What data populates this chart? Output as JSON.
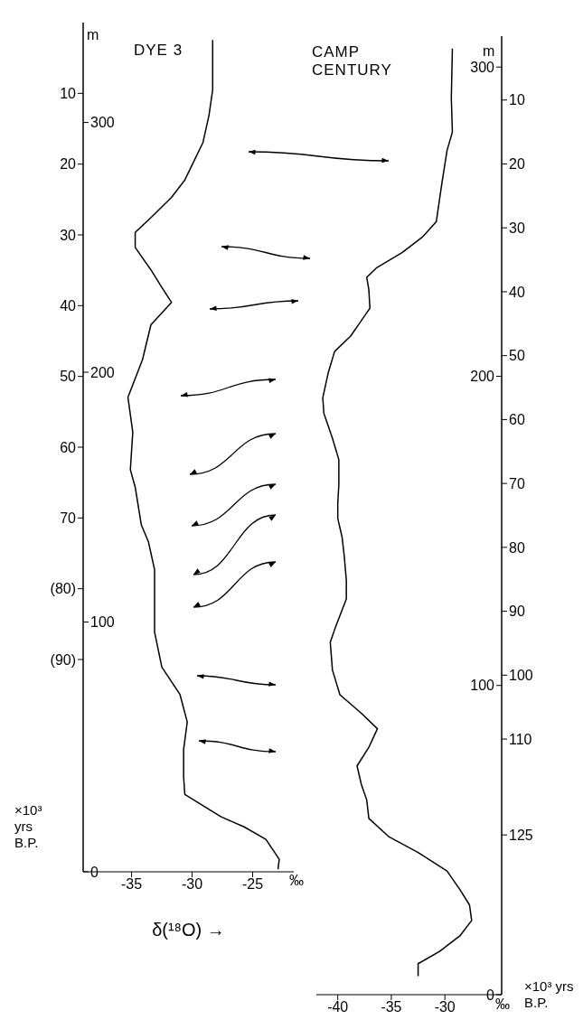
{
  "chart_data": [
    {
      "type": "line",
      "title": "DYE 3",
      "xlabel": "δ(¹⁸O) →",
      "ylabel": "m",
      "y2label": "×10³ yrs B.P.",
      "orientation": "horizontal",
      "color": "#000000",
      "marker": "none",
      "legend": false,
      "grid": false,
      "x": [
        333,
        313,
        303,
        292,
        284,
        277,
        270,
        261,
        256,
        250,
        241,
        234,
        228,
        219,
        205,
        190,
        176,
        161,
        154,
        139,
        132,
        121,
        111,
        96,
        82,
        71,
        60,
        49,
        38,
        31,
        22,
        18,
        13,
        5,
        1
      ],
      "values": [
        -28.3,
        -28.3,
        -28.6,
        -29.1,
        -29.9,
        -30.6,
        -31.7,
        -33.6,
        -34.7,
        -34.7,
        -33.4,
        -32.5,
        -31.7,
        -33.4,
        -34.1,
        -35.3,
        -34.9,
        -35.1,
        -34.7,
        -34.2,
        -33.6,
        -33.1,
        -33.1,
        -33.1,
        -32.5,
        -31.0,
        -30.4,
        -30.7,
        -30.7,
        -30.6,
        -27.6,
        -25.7,
        -23.9,
        -22.8,
        -22.9
      ],
      "xlim": [
        -39,
        -21.6
      ],
      "xticks": [
        -35,
        -30,
        -25
      ],
      "ylim": [
        0,
        340
      ],
      "yticks": [
        0,
        100,
        200,
        300
      ],
      "y2lim": [
        120,
        0
      ],
      "y2ticks": [
        10,
        20,
        30,
        40,
        50,
        60,
        70,
        {
          "value": 80,
          "label": "(80)"
        },
        {
          "value": 90,
          "label": "(90)"
        }
      ],
      "annotations": [
        "‰"
      ]
    },
    {
      "type": "line",
      "title": "CAMP CENTURY",
      "ylabel": "m",
      "y2label": "×10³ yrs B.P.",
      "orientation": "horizontal",
      "color": "#000000",
      "marker": "none",
      "legend": false,
      "grid": false,
      "x": [
        306,
        290,
        279,
        273,
        262,
        250,
        245,
        240,
        235,
        232,
        228,
        222,
        218,
        213,
        208,
        201,
        193,
        188,
        180,
        173,
        165,
        159,
        154,
        148,
        142,
        134,
        128,
        119,
        114,
        105,
        97,
        91,
        86,
        80,
        74,
        68,
        63,
        57,
        51,
        46,
        40,
        34,
        29,
        24,
        19,
        14,
        10,
        6
      ],
      "values": [
        -29.3,
        -29.4,
        -29.3,
        -29.8,
        -30.3,
        -30.8,
        -32.1,
        -34.0,
        -36.4,
        -37.3,
        -37.1,
        -37.0,
        -37.8,
        -38.8,
        -40.3,
        -40.9,
        -41.4,
        -41.3,
        -40.5,
        -39.9,
        -39.9,
        -40.0,
        -40.0,
        -39.6,
        -39.4,
        -39.2,
        -39.2,
        -40.2,
        -40.7,
        -40.5,
        -39.8,
        -37.8,
        -36.3,
        -37.1,
        -38.2,
        -37.8,
        -37.3,
        -37.1,
        -35.2,
        -32.5,
        -29.8,
        -28.6,
        -27.7,
        -27.5,
        -28.6,
        -30.5,
        -32.5,
        -32.5
      ],
      "xlim": [
        -42,
        -24.7
      ],
      "xticks": [
        -40,
        -35,
        -30
      ],
      "ylim": [
        0,
        310
      ],
      "yticks": [
        0,
        100,
        200,
        300
      ],
      "y2lim": [
        150,
        0
      ],
      "y2ticks": [
        10,
        20,
        30,
        40,
        50,
        60,
        70,
        80,
        90,
        100,
        110,
        125
      ],
      "annotations": [
        "‰"
      ]
    }
  ]
}
